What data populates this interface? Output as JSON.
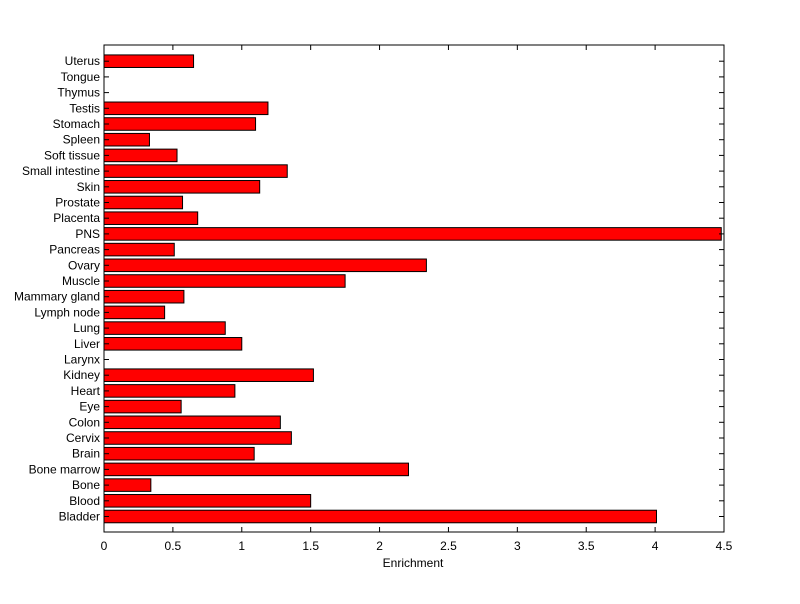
{
  "chart_data": {
    "type": "bar",
    "orientation": "horizontal",
    "categories": [
      "Bladder",
      "Blood",
      "Bone",
      "Bone marrow",
      "Brain",
      "Cervix",
      "Colon",
      "Eye",
      "Heart",
      "Kidney",
      "Larynx",
      "Liver",
      "Lung",
      "Lymph node",
      "Mammary gland",
      "Muscle",
      "Ovary",
      "Pancreas",
      "PNS",
      "Placenta",
      "Prostate",
      "Skin",
      "Small intestine",
      "Soft tissue",
      "Spleen",
      "Stomach",
      "Testis",
      "Thymus",
      "Tongue",
      "Uterus"
    ],
    "values": [
      4.01,
      1.5,
      0.34,
      2.21,
      1.09,
      1.36,
      1.28,
      0.56,
      0.95,
      1.52,
      0,
      1.0,
      0.88,
      0.44,
      0.58,
      1.75,
      2.34,
      0.51,
      4.48,
      0.68,
      0.57,
      1.13,
      1.33,
      0.53,
      0.33,
      1.1,
      1.19,
      0,
      0,
      0.65
    ],
    "xlabel": "Enrichment",
    "ylabel": "",
    "title": "",
    "xlim": [
      0,
      4.5
    ],
    "xticks": [
      "0",
      "0.5",
      "1",
      "1.5",
      "2",
      "2.5",
      "3",
      "3.5",
      "4",
      "4.5"
    ],
    "grid": false,
    "bar_color": "#ff0000",
    "edge_color": "#000000"
  }
}
